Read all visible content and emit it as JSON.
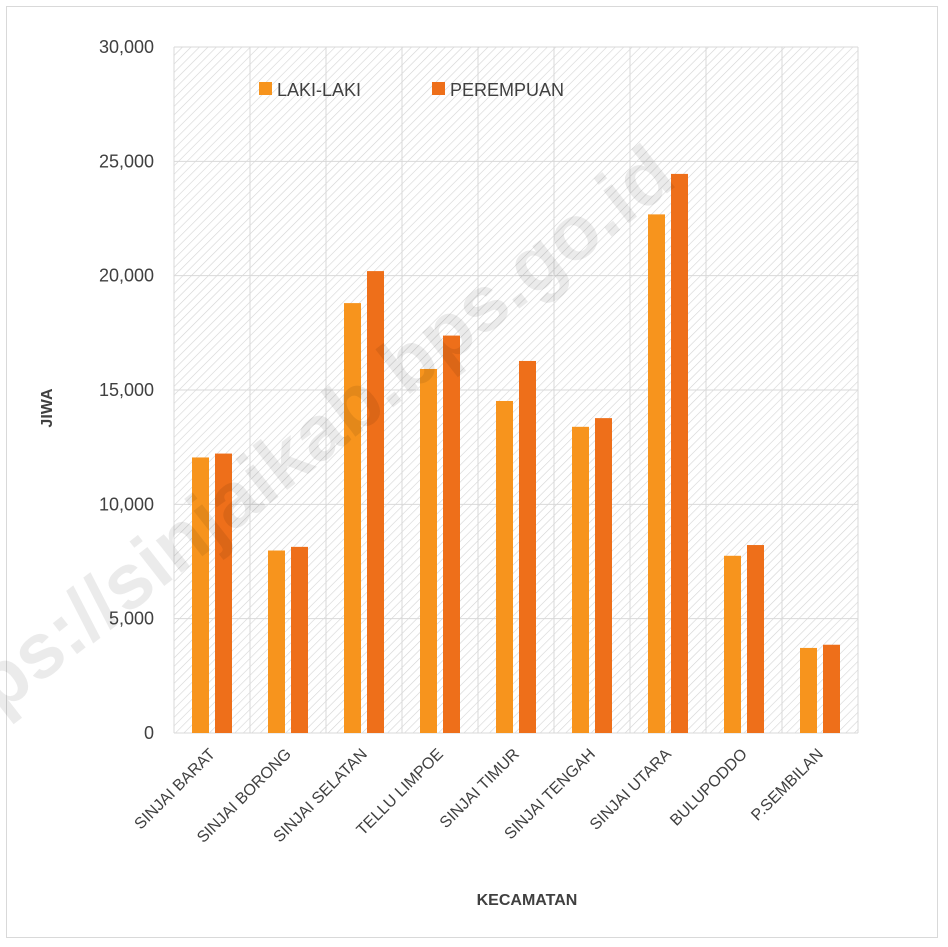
{
  "chart_data": {
    "type": "bar",
    "categories": [
      "SINJAI BARAT",
      "SINJAI BORONG",
      "SINJAI SELATAN",
      "TELLU LIMPOE",
      "SINJAI TIMUR",
      "SINJAI TENGAH",
      "SINJAI UTARA",
      "BULUPODDO",
      "P.SEMBILAN"
    ],
    "series": [
      {
        "name": "LAKI-LAKI",
        "color": "#f7941d",
        "values": [
          12050,
          7980,
          18800,
          15920,
          14520,
          13390,
          22680,
          7750,
          3720
        ]
      },
      {
        "name": "PEREMPUAN",
        "color": "#ee6f1a",
        "values": [
          12220,
          8140,
          20200,
          17380,
          16270,
          13770,
          24450,
          8220,
          3860
        ]
      }
    ],
    "xlabel": "KECAMATAN",
    "ylabel": "JIWA",
    "ylim": [
      0,
      30000
    ],
    "yticks": [
      0,
      5000,
      10000,
      15000,
      20000,
      25000,
      30000
    ],
    "ytick_labels": [
      "0",
      "5,000",
      "10,000",
      "15,000",
      "20,000",
      "25,000",
      "30,000"
    ],
    "grid": true,
    "legend_position": "top-left"
  },
  "watermark": "https://sinjaikab.bps.go.id"
}
